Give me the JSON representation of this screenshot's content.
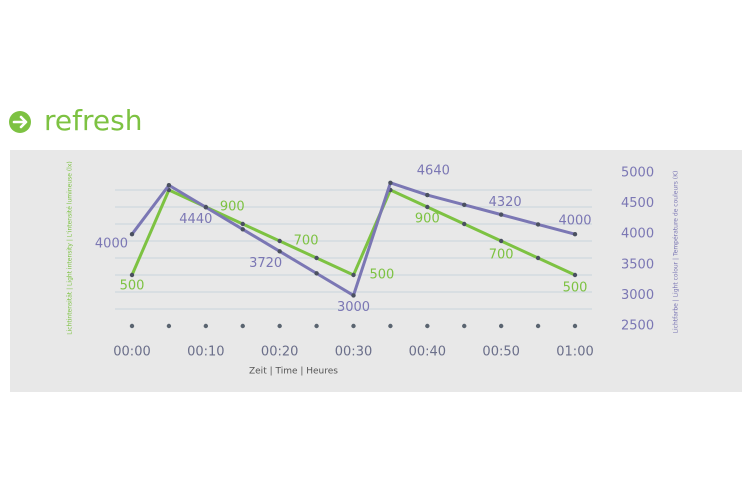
{
  "header": {
    "title": "refresh"
  },
  "chart_data": {
    "type": "line",
    "xlabel": "Zeit | Time | Heures",
    "ylabel": "Lichtintensität | Light intensity | L'intensité lumineuse (lx)",
    "y2label": "Lichtfarbe | Light colour | Température de couleurs (K)",
    "categories": [
      "00:00",
      null,
      "00:10",
      null,
      "00:20",
      null,
      "00:30",
      null,
      "00:40",
      null,
      "00:50",
      null,
      "01:00"
    ],
    "ylim": [
      200,
      1100
    ],
    "ygrid": [
      300,
      400,
      500,
      600,
      700,
      800,
      900,
      1000
    ],
    "y2lim": [
      2500,
      5000
    ],
    "y2ticks": [
      2500,
      3000,
      3500,
      4000,
      4500,
      5000
    ],
    "series": [
      {
        "name": "Lichtintensität | Light intensity | L'intensité lumineuse (lx)",
        "color": "#7dc242",
        "axis": "y",
        "values": [
          500,
          1000,
          900,
          800,
          700,
          600,
          500,
          1000,
          900,
          800,
          700,
          600,
          500
        ],
        "value_labels": [
          "500",
          null,
          "900",
          null,
          "700",
          null,
          "500",
          null,
          "900",
          null,
          "700",
          null,
          "500"
        ]
      },
      {
        "name": "Lichtfarbe | Light colour | Température de couleurs (K)",
        "color": "#7b77b4",
        "axis": "y2",
        "values": [
          4000,
          4800,
          4440,
          4080,
          3720,
          3360,
          3000,
          4840,
          4640,
          4480,
          4320,
          4160,
          4000
        ],
        "value_labels": [
          "4000",
          null,
          "4440",
          null,
          "3720",
          null,
          "3000",
          null,
          "4640",
          null,
          "4320",
          null,
          "4000"
        ]
      }
    ]
  }
}
